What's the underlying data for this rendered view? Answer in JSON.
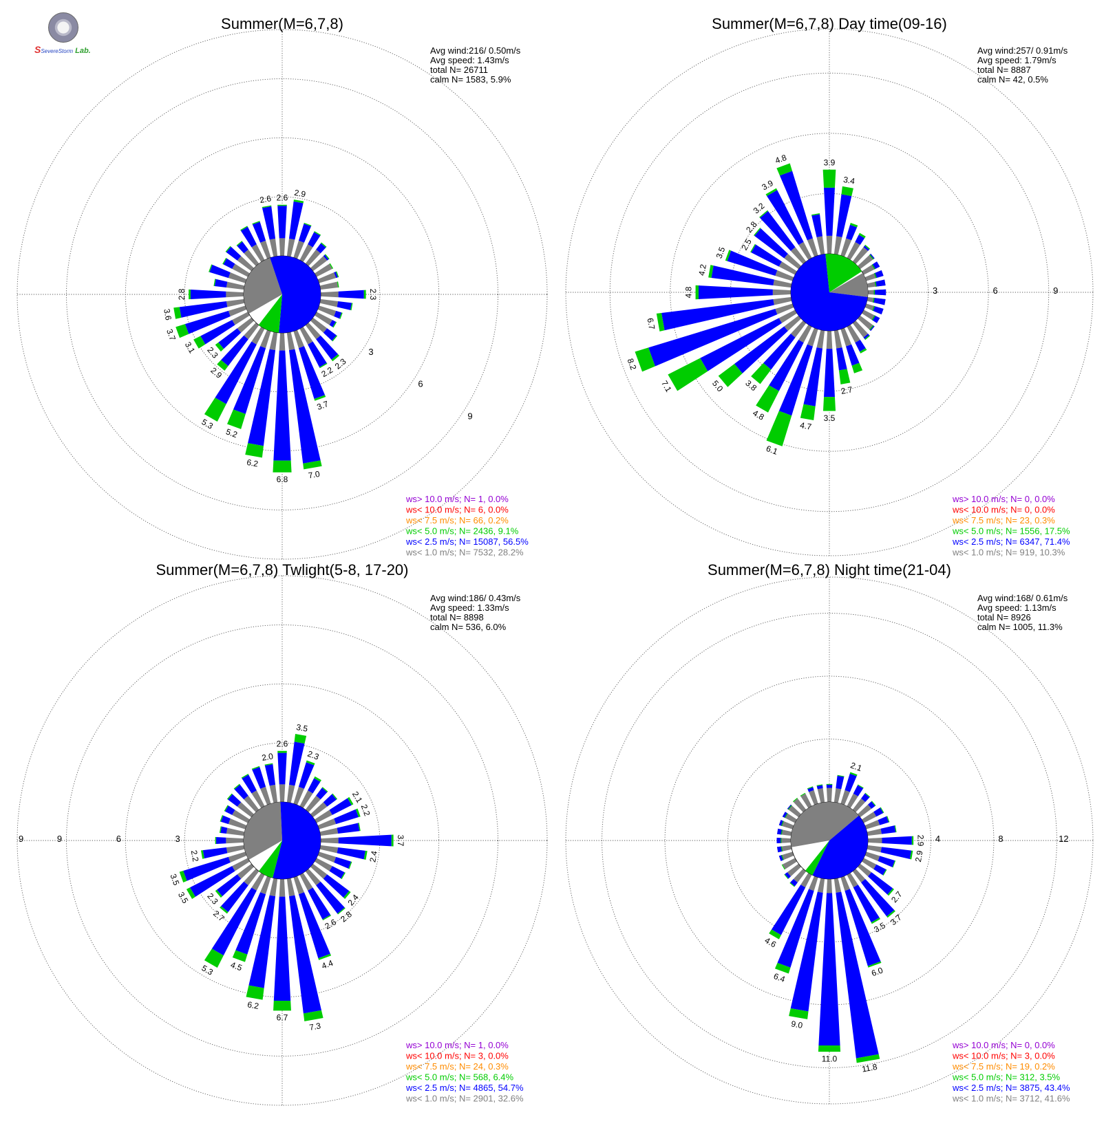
{
  "logo": {
    "text_a": "S",
    "text_b": "Severe",
    "text_c": "Storm",
    "text_d": "Lab."
  },
  "colors": {
    "calm": "#808080",
    "bin1": "#0000ff",
    "bin2": "#00cc00",
    "bin3": "#ff8c00",
    "bin4": "#ff0000",
    "bin5": "#9400d3"
  },
  "chart_data": [
    {
      "type": "windrose",
      "title": "Summer(M=6,7,8)",
      "stats": [
        "Avg wind:216/ 0.50m/s",
        "Avg speed: 1.43m/s",
        "total N=       26711",
        "calm N=   1583,   5.9%"
      ],
      "ring_labels": [
        "3",
        "6",
        "9"
      ],
      "rmax": 11.5,
      "sectors": 36,
      "frequency_labels": [
        {
          "dir": 0,
          "text": "2.6"
        },
        {
          "dir": 10,
          "text": "2.9"
        },
        {
          "dir": 350,
          "text": "2.6"
        },
        {
          "dir": 90,
          "text": "2.3"
        },
        {
          "dir": 140,
          "text": "2.3"
        },
        {
          "dir": 150,
          "text": "2.2"
        },
        {
          "dir": 160,
          "text": "3.7"
        },
        {
          "dir": 170,
          "text": "7.0"
        },
        {
          "dir": 180,
          "text": "6.8"
        },
        {
          "dir": 190,
          "text": "6.2"
        },
        {
          "dir": 200,
          "text": "5.2"
        },
        {
          "dir": 210,
          "text": "5.3"
        },
        {
          "dir": 220,
          "text": "2.9"
        },
        {
          "dir": 230,
          "text": "2.3"
        },
        {
          "dir": 240,
          "text": "3.1"
        },
        {
          "dir": 250,
          "text": "3.7"
        },
        {
          "dir": 260,
          "text": "3.6"
        },
        {
          "dir": 270,
          "text": "2.8"
        }
      ],
      "bars": [
        [
          0,
          2.55,
          0.05
        ],
        [
          10,
          2.8,
          0.1
        ],
        [
          20,
          1.8,
          0.05
        ],
        [
          30,
          1.6,
          0.05
        ],
        [
          40,
          1.3,
          0.05
        ],
        [
          50,
          1.0,
          0.05
        ],
        [
          60,
          0.9,
          0.05
        ],
        [
          70,
          1.0,
          0.05
        ],
        [
          80,
          0.9,
          0.05
        ],
        [
          90,
          2.2,
          0.1
        ],
        [
          100,
          1.6,
          0.05
        ],
        [
          110,
          1.2,
          0.05
        ],
        [
          120,
          1.1,
          0.05
        ],
        [
          130,
          1.5,
          0.05
        ],
        [
          140,
          2.2,
          0.1
        ],
        [
          150,
          2.2,
          0.05
        ],
        [
          160,
          3.6,
          0.1
        ],
        [
          170,
          6.7,
          0.3
        ],
        [
          180,
          6.5,
          0.6
        ],
        [
          190,
          5.8,
          0.6
        ],
        [
          200,
          4.4,
          0.8
        ],
        [
          210,
          4.3,
          1.0
        ],
        [
          220,
          2.6,
          0.3
        ],
        [
          230,
          2.1,
          0.2
        ],
        [
          240,
          2.7,
          0.4
        ],
        [
          250,
          3.2,
          0.5
        ],
        [
          260,
          3.3,
          0.3
        ],
        [
          270,
          2.7,
          0.1
        ],
        [
          280,
          1.5,
          0.05
        ],
        [
          290,
          1.9,
          0.05
        ],
        [
          300,
          1.4,
          0.05
        ],
        [
          310,
          1.6,
          0.05
        ],
        [
          320,
          1.4,
          0.05
        ],
        [
          330,
          1.9,
          0.05
        ],
        [
          340,
          1.9,
          0.05
        ],
        [
          350,
          2.55,
          0.05
        ]
      ],
      "center_pie": {
        "calm_pct": 28.2,
        "bin1_pct": 56.5,
        "bin2_pct": 9.1,
        "start_dir": 240
      },
      "legend": [
        {
          "text": "ws> 10.0 m/s; N=     1,  0.0%",
          "color": "#9400d3"
        },
        {
          "text": "ws< 10.0 m/s; N=     6,  0.0%",
          "color": "#ff0000"
        },
        {
          "text": "ws<  7.5 m/s; N=    66,  0.2%",
          "color": "#ff8c00"
        },
        {
          "text": "ws<  5.0 m/s; N=  2436,  9.1%",
          "color": "#00cc00"
        },
        {
          "text": "ws<  2.5 m/s; N= 15087, 56.5%",
          "color": "#0000ff"
        },
        {
          "text": "ws<  1.0 m/s; N=  7532, 28.2%",
          "color": "#808080"
        }
      ]
    },
    {
      "type": "windrose",
      "title": "Summer(M=6,7,8) Day time(09-16)",
      "stats": [
        "Avg wind:257/ 0.91m/s",
        "Avg speed: 1.79m/s",
        "total N=        8887",
        "calm N=     42,   0.5%"
      ],
      "ring_labels": [
        "3",
        "6",
        "9"
      ],
      "rmax": 11.2,
      "sectors": 36,
      "frequency_labels": [
        {
          "dir": 0,
          "text": "3.9"
        },
        {
          "dir": 10,
          "text": "3.4"
        },
        {
          "dir": 340,
          "text": "4.8"
        },
        {
          "dir": 330,
          "text": "3.9"
        },
        {
          "dir": 320,
          "text": "3.2"
        },
        {
          "dir": 310,
          "text": "2.8"
        },
        {
          "dir": 300,
          "text": "2.5"
        },
        {
          "dir": 290,
          "text": "3.5"
        },
        {
          "dir": 280,
          "text": "4.2"
        },
        {
          "dir": 270,
          "text": "4.8"
        },
        {
          "dir": 260,
          "text": "6.7"
        },
        {
          "dir": 250,
          "text": "8.2"
        },
        {
          "dir": 240,
          "text": "7.1"
        },
        {
          "dir": 230,
          "text": "5.0"
        },
        {
          "dir": 220,
          "text": "3.8"
        },
        {
          "dir": 210,
          "text": "4.8"
        },
        {
          "dir": 200,
          "text": "6.1"
        },
        {
          "dir": 190,
          "text": "4.7"
        },
        {
          "dir": 180,
          "text": "3.5"
        },
        {
          "dir": 170,
          "text": "2.7"
        }
      ],
      "bars": [
        [
          0,
          3.3,
          0.9
        ],
        [
          10,
          3.0,
          0.4
        ],
        [
          20,
          1.6,
          0.1
        ],
        [
          30,
          1.3,
          0.1
        ],
        [
          40,
          1.0,
          0.05
        ],
        [
          50,
          0.8,
          0.05
        ],
        [
          60,
          0.6,
          0.05
        ],
        [
          70,
          0.5,
          0.05
        ],
        [
          80,
          0.4,
          0.05
        ],
        [
          90,
          0.3,
          0.05
        ],
        [
          100,
          0.3,
          0.05
        ],
        [
          110,
          0.4,
          0.05
        ],
        [
          120,
          0.6,
          0.05
        ],
        [
          130,
          0.8,
          0.05
        ],
        [
          140,
          1.0,
          0.05
        ],
        [
          150,
          1.4,
          0.1
        ],
        [
          160,
          1.9,
          0.4
        ],
        [
          170,
          2.0,
          0.7
        ],
        [
          180,
          3.3,
          0.7
        ],
        [
          190,
          3.8,
          0.7
        ],
        [
          200,
          4.5,
          1.6
        ],
        [
          210,
          3.6,
          1.2
        ],
        [
          220,
          2.9,
          0.9
        ],
        [
          230,
          4.0,
          1.0
        ],
        [
          240,
          5.3,
          1.8
        ],
        [
          250,
          7.5,
          0.7
        ],
        [
          260,
          6.5,
          0.25
        ],
        [
          270,
          4.6,
          0.15
        ],
        [
          280,
          4.0,
          0.15
        ],
        [
          290,
          3.4,
          0.1
        ],
        [
          300,
          2.45,
          0.05
        ],
        [
          310,
          2.75,
          0.05
        ],
        [
          320,
          3.15,
          0.05
        ],
        [
          330,
          3.8,
          0.1
        ],
        [
          340,
          4.4,
          0.4
        ],
        [
          350,
          2.0,
          0.05
        ]
      ],
      "center_pie": {
        "calm_pct": 10.3,
        "bin1_pct": 71.4,
        "bin2_pct": 17.5,
        "start_dir": 60
      },
      "legend": [
        {
          "text": "ws> 10.0 m/s; N=     0,  0.0%",
          "color": "#9400d3"
        },
        {
          "text": "ws< 10.0 m/s; N=     0,  0.0%",
          "color": "#ff0000"
        },
        {
          "text": "ws<  7.5 m/s; N=    23,  0.3%",
          "color": "#ff8c00"
        },
        {
          "text": "ws<  5.0 m/s; N=  1556, 17.5%",
          "color": "#00cc00"
        },
        {
          "text": "ws<  2.5 m/s; N=  6347, 71.4%",
          "color": "#0000ff"
        },
        {
          "text": "ws<  1.0 m/s; N=   919, 10.3%",
          "color": "#808080"
        }
      ]
    },
    {
      "type": "windrose",
      "title": "Summer(M=6,7,8) Twlight(5-8, 17-20)",
      "stats": [
        "Avg wind:186/ 0.43m/s",
        "Avg speed: 1.33m/s",
        "total N=        8898",
        "calm N=    536,   6.0%"
      ],
      "ring_labels": [
        "3",
        "6",
        "9"
      ],
      "rmax": 11.5,
      "sectors": 36,
      "frequency_labels": [
        {
          "dir": 0,
          "text": "2.6"
        },
        {
          "dir": 10,
          "text": "3.5"
        },
        {
          "dir": 20,
          "text": "2.3"
        },
        {
          "dir": 350,
          "text": "2.0"
        },
        {
          "dir": 60,
          "text": "2.1"
        },
        {
          "dir": 70,
          "text": "2.2"
        },
        {
          "dir": 90,
          "text": "3.7"
        },
        {
          "dir": 100,
          "text": "2.4"
        },
        {
          "dir": 130,
          "text": "2.4"
        },
        {
          "dir": 140,
          "text": "2.8"
        },
        {
          "dir": 150,
          "text": "2.6"
        },
        {
          "dir": 160,
          "text": "4.4"
        },
        {
          "dir": 170,
          "text": "7.3"
        },
        {
          "dir": 180,
          "text": "6.7"
        },
        {
          "dir": 190,
          "text": "6.2"
        },
        {
          "dir": 200,
          "text": "4.5"
        },
        {
          "dir": 210,
          "text": "5.3"
        },
        {
          "dir": 220,
          "text": "2.7"
        },
        {
          "dir": 230,
          "text": "2.3"
        },
        {
          "dir": 240,
          "text": "3.5"
        },
        {
          "dir": 250,
          "text": "3.5"
        },
        {
          "dir": 260,
          "text": "2.2"
        }
      ],
      "bars": [
        [
          0,
          2.5,
          0.1
        ],
        [
          10,
          3.1,
          0.4
        ],
        [
          20,
          2.2,
          0.1
        ],
        [
          30,
          1.6,
          0.1
        ],
        [
          40,
          1.4,
          0.05
        ],
        [
          50,
          1.5,
          0.05
        ],
        [
          60,
          2.0,
          0.1
        ],
        [
          70,
          2.1,
          0.1
        ],
        [
          80,
          2.0,
          0.05
        ],
        [
          90,
          3.6,
          0.1
        ],
        [
          100,
          2.3,
          0.1
        ],
        [
          110,
          1.7,
          0.05
        ],
        [
          120,
          1.6,
          0.05
        ],
        [
          130,
          2.3,
          0.1
        ],
        [
          140,
          2.7,
          0.05
        ],
        [
          150,
          2.55,
          0.05
        ],
        [
          160,
          4.3,
          0.1
        ],
        [
          170,
          6.9,
          0.4
        ],
        [
          180,
          6.2,
          0.5
        ],
        [
          190,
          5.6,
          0.6
        ],
        [
          200,
          4.1,
          0.4
        ],
        [
          210,
          4.6,
          0.7
        ],
        [
          220,
          2.6,
          0.1
        ],
        [
          230,
          2.2,
          0.1
        ],
        [
          240,
          3.3,
          0.2
        ],
        [
          250,
          3.3,
          0.2
        ],
        [
          260,
          2.1,
          0.1
        ],
        [
          270,
          1.4,
          0.05
        ],
        [
          280,
          1.2,
          0.05
        ],
        [
          290,
          1.3,
          0.05
        ],
        [
          300,
          1.3,
          0.05
        ],
        [
          310,
          1.5,
          0.05
        ],
        [
          320,
          1.6,
          0.05
        ],
        [
          330,
          1.8,
          0.05
        ],
        [
          340,
          1.95,
          0.05
        ],
        [
          350,
          1.95,
          0.05
        ]
      ],
      "center_pie": {
        "calm_pct": 32.6,
        "bin1_pct": 54.7,
        "bin2_pct": 6.4,
        "start_dir": 240
      },
      "legend": [
        {
          "text": "ws> 10.0 m/s; N=     1,  0.0%",
          "color": "#9400d3"
        },
        {
          "text": "ws< 10.0 m/s; N=     3,  0.0%",
          "color": "#ff0000"
        },
        {
          "text": "ws<  7.5 m/s; N=    24,  0.3%",
          "color": "#ff8c00"
        },
        {
          "text": "ws<  5.0 m/s; N=   568,  6.4%",
          "color": "#00cc00"
        },
        {
          "text": "ws<  2.5 m/s; N=  4865, 54.7%",
          "color": "#0000ff"
        },
        {
          "text": "ws<  1.0 m/s; N=  2901, 32.6%",
          "color": "#808080"
        }
      ]
    },
    {
      "type": "windrose",
      "title": "Summer(M=6,7,8) Night time(21-04)",
      "stats": [
        "Avg wind:168/ 0.61m/s",
        "Avg speed: 1.13m/s",
        "total N=        8926",
        "calm N=   1005,  11.3%"
      ],
      "ring_labels": [
        "4",
        "8",
        "12"
      ],
      "rmax": 14.3,
      "sectors": 36,
      "frequency_labels": [
        {
          "dir": 20,
          "text": "2.1"
        },
        {
          "dir": 90,
          "text": "2.9"
        },
        {
          "dir": 100,
          "text": "2.9"
        },
        {
          "dir": 130,
          "text": "2.7"
        },
        {
          "dir": 140,
          "text": "3.7"
        },
        {
          "dir": 150,
          "text": "3.5"
        },
        {
          "dir": 160,
          "text": "6.0"
        },
        {
          "dir": 170,
          "text": "11.8"
        },
        {
          "dir": 180,
          "text": "11.0"
        },
        {
          "dir": 190,
          "text": "9.0"
        },
        {
          "dir": 200,
          "text": "6.4"
        },
        {
          "dir": 210,
          "text": "4.6"
        }
      ],
      "bars": [
        [
          0,
          1.1,
          0.05
        ],
        [
          10,
          1.7,
          0.05
        ],
        [
          20,
          2.0,
          0.1
        ],
        [
          30,
          1.5,
          0.05
        ],
        [
          40,
          1.3,
          0.05
        ],
        [
          50,
          1.2,
          0.05
        ],
        [
          60,
          1.4,
          0.05
        ],
        [
          70,
          1.5,
          0.05
        ],
        [
          80,
          1.8,
          0.05
        ],
        [
          90,
          2.8,
          0.1
        ],
        [
          100,
          2.8,
          0.1
        ],
        [
          110,
          1.9,
          0.05
        ],
        [
          120,
          1.6,
          0.05
        ],
        [
          130,
          2.6,
          0.1
        ],
        [
          140,
          3.6,
          0.1
        ],
        [
          150,
          3.4,
          0.1
        ],
        [
          160,
          5.9,
          0.1
        ],
        [
          170,
          11.5,
          0.3
        ],
        [
          180,
          10.6,
          0.4
        ],
        [
          190,
          8.5,
          0.5
        ],
        [
          200,
          6.0,
          0.4
        ],
        [
          210,
          4.3,
          0.3
        ],
        [
          220,
          1.2,
          0.05
        ],
        [
          230,
          1.1,
          0.05
        ],
        [
          240,
          0.9,
          0.05
        ],
        [
          250,
          0.7,
          0.05
        ],
        [
          260,
          0.6,
          0.05
        ],
        [
          270,
          0.6,
          0.05
        ],
        [
          280,
          0.6,
          0.05
        ],
        [
          290,
          0.7,
          0.05
        ],
        [
          300,
          0.7,
          0.05
        ],
        [
          310,
          0.8,
          0.05
        ],
        [
          320,
          0.9,
          0.05
        ],
        [
          330,
          0.9,
          0.05
        ],
        [
          340,
          1.1,
          0.05
        ],
        [
          350,
          1.1,
          0.05
        ]
      ],
      "center_pie": {
        "calm_pct": 41.6,
        "bin1_pct": 43.4,
        "bin2_pct": 3.5,
        "start_dir": 260
      },
      "legend": [
        {
          "text": "ws> 10.0 m/s; N=     0,  0.0%",
          "color": "#9400d3"
        },
        {
          "text": "ws< 10.0 m/s; N=     3,  0.0%",
          "color": "#ff0000"
        },
        {
          "text": "ws<  7.5 m/s; N=    19,  0.2%",
          "color": "#ff8c00"
        },
        {
          "text": "ws<  5.0 m/s; N=   312,  3.5%",
          "color": "#00cc00"
        },
        {
          "text": "ws<  2.5 m/s; N=  3875, 43.4%",
          "color": "#0000ff"
        },
        {
          "text": "ws<  1.0 m/s; N=  3712, 41.6%",
          "color": "#808080"
        }
      ]
    }
  ]
}
